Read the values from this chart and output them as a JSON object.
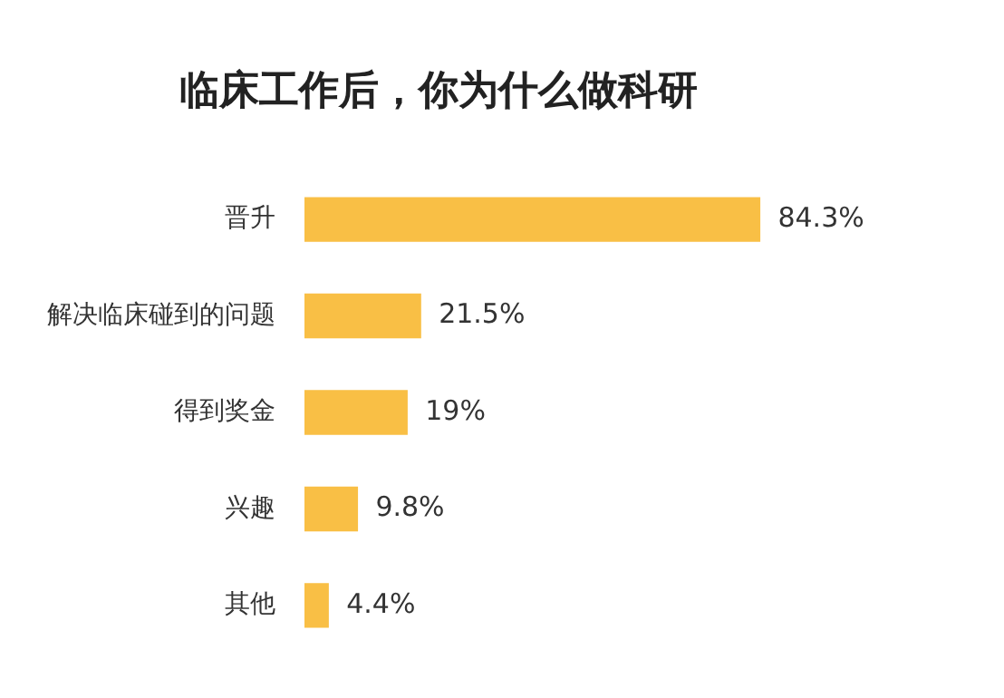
{
  "chart_data": {
    "type": "bar",
    "orientation": "horizontal",
    "title": "临床工作后，你为什么做科研",
    "categories": [
      "晋升",
      "解决临床碰到的问题",
      "得到奖金",
      "兴趣",
      "其他"
    ],
    "values": [
      84.3,
      21.5,
      19,
      9.8,
      4.4
    ],
    "value_labels": [
      "84.3%",
      "21.5%",
      "19%",
      "9.8%",
      "4.4%"
    ],
    "color": "#f9bf45",
    "legend": false,
    "tick_labels": "y"
  }
}
